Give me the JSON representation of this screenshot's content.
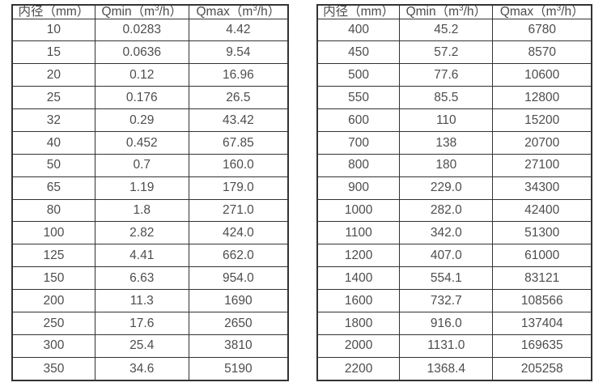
{
  "page": {
    "background_color": "#ffffff",
    "text_color": "#4d4d4d",
    "border_color": "#333333"
  },
  "tables": [
    {
      "name": "flow-rate-table-small-diameters",
      "headers": [
        "内径（mm）",
        "Qmin（m³/h）",
        "Qmax（m³/h）"
      ],
      "rows": [
        [
          "10",
          "0.0283",
          "4.42"
        ],
        [
          "15",
          "0.0636",
          "9.54"
        ],
        [
          "20",
          "0.12",
          "16.96"
        ],
        [
          "25",
          "0.176",
          "26.5"
        ],
        [
          "32",
          "0.29",
          "43.42"
        ],
        [
          "40",
          "0.452",
          "67.85"
        ],
        [
          "50",
          "0.7",
          "160.0"
        ],
        [
          "65",
          "1.19",
          "179.0"
        ],
        [
          "80",
          "1.8",
          "271.0"
        ],
        [
          "100",
          "2.82",
          "424.0"
        ],
        [
          "125",
          "4.41",
          "662.0"
        ],
        [
          "150",
          "6.63",
          "954.0"
        ],
        [
          "200",
          "11.3",
          "1690"
        ],
        [
          "250",
          "17.6",
          "2650"
        ],
        [
          "300",
          "25.4",
          "3810"
        ],
        [
          "350",
          "34.6",
          "5190"
        ]
      ]
    },
    {
      "name": "flow-rate-table-large-diameters",
      "headers": [
        "内径（mm）",
        "Qmin（m³/h）",
        "Qmax（m³/h）"
      ],
      "rows": [
        [
          "400",
          "45.2",
          "6780"
        ],
        [
          "450",
          "57.2",
          "8570"
        ],
        [
          "500",
          "77.6",
          "10600"
        ],
        [
          "550",
          "85.5",
          "12800"
        ],
        [
          "600",
          "110",
          "15200"
        ],
        [
          "700",
          "138",
          "20700"
        ],
        [
          "800",
          "180",
          "27100"
        ],
        [
          "900",
          "229.0",
          "34300"
        ],
        [
          "1000",
          "282.0",
          "42400"
        ],
        [
          "1100",
          "342.0",
          "51300"
        ],
        [
          "1200",
          "407.0",
          "61000"
        ],
        [
          "1400",
          "554.1",
          "83121"
        ],
        [
          "1600",
          "732.7",
          "108566"
        ],
        [
          "1800",
          "916.0",
          "137404"
        ],
        [
          "2000",
          "1131.0",
          "169635"
        ],
        [
          "2200",
          "1368.4",
          "205258"
        ]
      ]
    }
  ]
}
